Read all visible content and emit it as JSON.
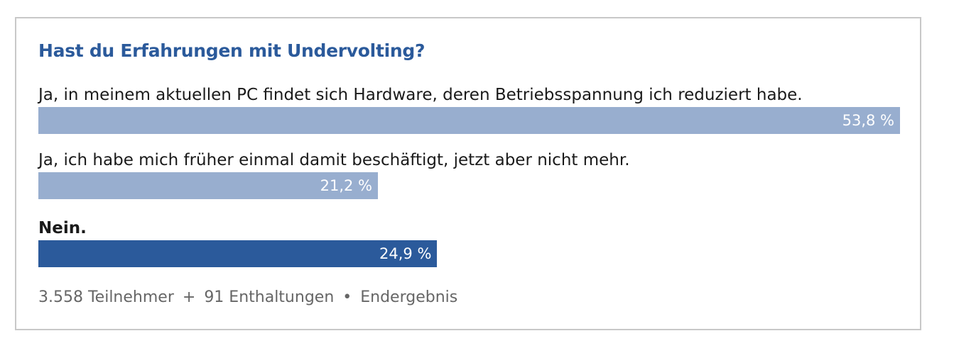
{
  "poll": {
    "title": "Hast du Erfahrungen mit Undervolting?",
    "options": [
      {
        "label": "Ja, in meinem aktuellen PC findet sich Hardware, deren Betriebsspannung ich reduziert habe.",
        "percent": 53.8,
        "percent_label": "53,8 %",
        "selected": false
      },
      {
        "label": "Ja, ich habe mich früher einmal damit beschäftigt, jetzt aber nicht mehr.",
        "percent": 21.2,
        "percent_label": "21,2 %",
        "selected": false
      },
      {
        "label": "Nein.",
        "percent": 24.9,
        "percent_label": "24,9 %",
        "selected": true
      }
    ],
    "footer": {
      "participants": "3.558 Teilnehmer",
      "plus": "+",
      "abstentions": "91 Enthaltungen",
      "bullet": "•",
      "status": "Endergebnis"
    }
  },
  "colors": {
    "title": "#2b5a9b",
    "bar_default": "#98aecf",
    "bar_selected": "#2b5a9b",
    "footer_text": "#666666",
    "border": "#c8c8c8"
  }
}
